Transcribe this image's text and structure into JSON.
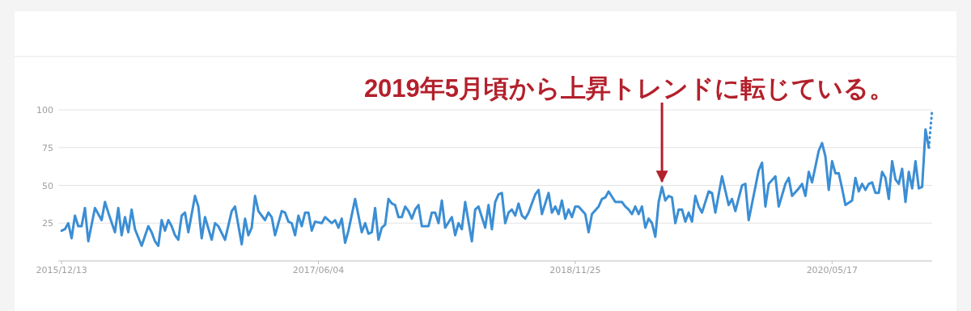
{
  "chart_data": {
    "type": "line",
    "grid": "y",
    "xlim": [
      "2015-12-06",
      "2020-12-13"
    ],
    "ylim": [
      0,
      100
    ],
    "yticks": [
      25,
      50,
      75,
      100
    ],
    "xticks": [
      {
        "value": "2015-12-13",
        "label": "2015/12/13"
      },
      {
        "value": "2017-06-04",
        "label": "2017/06/04"
      },
      {
        "value": "2018-11-25",
        "label": "2018/11/25"
      },
      {
        "value": "2020-05-17",
        "label": "2020/05/17"
      }
    ],
    "annotations": [
      {
        "text": "2019年5月頃から上昇トレンドに転じている。",
        "x": "2019-05-26",
        "y": 52
      }
    ],
    "series": [
      {
        "color": "#3b8ed4",
        "line_style": "solid",
        "x": [
          "2015-12-13",
          "2015-12-20",
          "2015-12-27",
          "2016-01-03",
          "2016-01-10",
          "2016-01-17",
          "2016-01-24",
          "2016-01-31",
          "2016-02-07",
          "2016-02-21",
          "2016-03-06",
          "2016-03-13",
          "2016-03-20",
          "2016-04-03",
          "2016-04-10",
          "2016-04-17",
          "2016-04-24",
          "2016-05-01",
          "2016-05-08",
          "2016-05-15",
          "2016-05-29",
          "2016-06-12",
          "2016-06-19",
          "2016-06-26",
          "2016-07-03",
          "2016-07-10",
          "2016-07-17",
          "2016-07-24",
          "2016-07-31",
          "2016-08-07",
          "2016-08-14",
          "2016-08-21",
          "2016-08-28",
          "2016-09-04",
          "2016-09-18",
          "2016-09-25",
          "2016-10-02",
          "2016-10-09",
          "2016-10-23",
          "2016-10-30",
          "2016-11-06",
          "2016-11-20",
          "2016-12-04",
          "2016-12-11",
          "2016-12-25",
          "2017-01-01",
          "2017-01-08",
          "2017-01-15",
          "2017-01-22",
          "2017-01-29",
          "2017-02-12",
          "2017-02-19",
          "2017-02-26",
          "2017-03-05",
          "2017-03-19",
          "2017-03-26",
          "2017-04-02",
          "2017-04-09",
          "2017-04-16",
          "2017-04-23",
          "2017-04-30",
          "2017-05-07",
          "2017-05-14",
          "2017-05-21",
          "2017-05-28",
          "2017-06-11",
          "2017-06-18",
          "2017-07-02",
          "2017-07-09",
          "2017-07-16",
          "2017-07-23",
          "2017-07-30",
          "2017-08-06",
          "2017-08-20",
          "2017-09-03",
          "2017-09-10",
          "2017-09-17",
          "2017-09-24",
          "2017-10-01",
          "2017-10-08",
          "2017-10-15",
          "2017-10-22",
          "2017-10-29",
          "2017-11-05",
          "2017-11-12",
          "2017-11-19",
          "2017-11-26",
          "2017-12-03",
          "2017-12-10",
          "2017-12-17",
          "2017-12-24",
          "2017-12-31",
          "2018-01-07",
          "2018-01-21",
          "2018-01-28",
          "2018-02-04",
          "2018-02-11",
          "2018-02-18",
          "2018-02-25",
          "2018-03-11",
          "2018-03-18",
          "2018-03-25",
          "2018-04-01",
          "2018-04-08",
          "2018-04-22",
          "2018-04-29",
          "2018-05-06",
          "2018-05-20",
          "2018-05-27",
          "2018-06-03",
          "2018-06-10",
          "2018-06-17",
          "2018-06-24",
          "2018-07-01",
          "2018-07-08",
          "2018-07-15",
          "2018-07-22",
          "2018-07-29",
          "2018-08-05",
          "2018-08-12",
          "2018-08-19",
          "2018-09-02",
          "2018-09-09",
          "2018-09-16",
          "2018-09-30",
          "2018-10-07",
          "2018-10-14",
          "2018-10-21",
          "2018-10-28",
          "2018-11-04",
          "2018-11-11",
          "2018-11-18",
          "2018-11-25",
          "2018-12-02",
          "2018-12-16",
          "2018-12-23",
          "2018-12-30",
          "2019-01-13",
          "2019-01-20",
          "2019-01-27",
          "2019-02-03",
          "2019-02-17",
          "2019-03-03",
          "2019-03-10",
          "2019-03-17",
          "2019-03-24",
          "2019-03-31",
          "2019-04-07",
          "2019-04-14",
          "2019-04-21",
          "2019-04-28",
          "2019-05-05",
          "2019-05-12",
          "2019-05-19",
          "2019-05-26",
          "2019-06-02",
          "2019-06-09",
          "2019-06-16",
          "2019-06-23",
          "2019-06-30",
          "2019-07-07",
          "2019-07-14",
          "2019-07-21",
          "2019-07-28",
          "2019-08-04",
          "2019-08-11",
          "2019-08-18",
          "2019-09-01",
          "2019-09-08",
          "2019-09-15",
          "2019-09-22",
          "2019-09-29",
          "2019-10-13",
          "2019-10-20",
          "2019-10-27",
          "2019-11-10",
          "2019-11-17",
          "2019-11-24",
          "2019-12-15",
          "2019-12-22",
          "2019-12-29",
          "2020-01-05",
          "2020-01-19",
          "2020-01-26",
          "2020-02-09",
          "2020-02-16",
          "2020-02-23",
          "2020-03-08",
          "2020-03-15",
          "2020-03-22",
          "2020-03-29",
          "2020-04-05",
          "2020-04-19",
          "2020-04-26",
          "2020-05-03",
          "2020-05-10",
          "2020-05-17",
          "2020-05-24",
          "2020-05-31",
          "2020-06-07",
          "2020-06-14",
          "2020-06-28",
          "2020-07-05",
          "2020-07-12",
          "2020-07-19",
          "2020-07-26",
          "2020-08-02",
          "2020-08-09",
          "2020-08-16",
          "2020-08-23",
          "2020-08-30",
          "2020-09-06",
          "2020-09-13",
          "2020-09-20",
          "2020-09-27",
          "2020-10-04",
          "2020-10-11",
          "2020-10-18",
          "2020-10-25",
          "2020-11-01",
          "2020-11-08",
          "2020-11-15",
          "2020-11-22",
          "2020-11-29",
          "2020-12-06"
        ],
        "values": [
          20,
          21,
          25,
          15,
          30,
          23,
          23,
          35,
          13,
          35,
          27,
          39,
          32,
          19,
          35,
          17,
          29,
          19,
          34,
          21,
          10,
          23,
          19,
          13,
          10,
          27,
          20,
          27,
          23,
          17,
          14,
          30,
          32,
          19,
          43,
          36,
          15,
          29,
          14,
          25,
          23,
          14,
          33,
          36,
          11,
          28,
          17,
          22,
          43,
          33,
          27,
          32,
          29,
          17,
          33,
          32,
          26,
          25,
          17,
          30,
          23,
          32,
          32,
          20,
          26,
          25,
          29,
          25,
          27,
          22,
          28,
          12,
          20,
          41,
          19,
          25,
          18,
          19,
          35,
          14,
          22,
          24,
          41,
          38,
          37,
          29,
          29,
          36,
          33,
          28,
          34,
          37,
          23,
          23,
          32,
          32,
          25,
          40,
          22,
          29,
          17,
          25,
          21,
          39,
          13,
          34,
          36,
          22,
          37,
          21,
          39,
          44,
          45,
          25,
          32,
          34,
          30,
          38,
          30,
          28,
          32,
          44,
          47,
          31,
          45,
          32,
          36,
          31,
          40,
          28,
          34,
          29,
          36,
          36,
          31,
          19,
          31,
          36,
          41,
          42,
          46,
          39,
          39,
          36,
          34,
          31,
          36,
          31,
          36,
          22,
          28,
          25,
          16,
          39,
          49,
          40,
          43,
          42,
          25,
          34,
          34,
          26,
          32,
          26,
          43,
          36,
          32,
          46,
          45,
          32,
          44,
          56,
          37,
          41,
          33,
          50,
          51,
          27,
          60,
          65,
          36,
          51,
          56,
          36,
          51,
          55,
          43,
          48,
          51,
          43,
          59,
          52,
          73,
          78,
          69,
          47,
          66,
          58,
          58,
          48,
          37,
          40,
          55,
          46,
          51,
          47,
          51,
          52,
          45,
          45,
          59,
          55,
          41,
          66,
          54,
          51,
          61,
          39,
          59,
          48,
          66,
          48,
          49,
          87,
          75
        ]
      },
      {
        "color": "#3b8ed4",
        "line_style": "dotted",
        "x": [
          "2020-12-06",
          "2020-12-13"
        ],
        "values": [
          75,
          100
        ]
      }
    ]
  }
}
